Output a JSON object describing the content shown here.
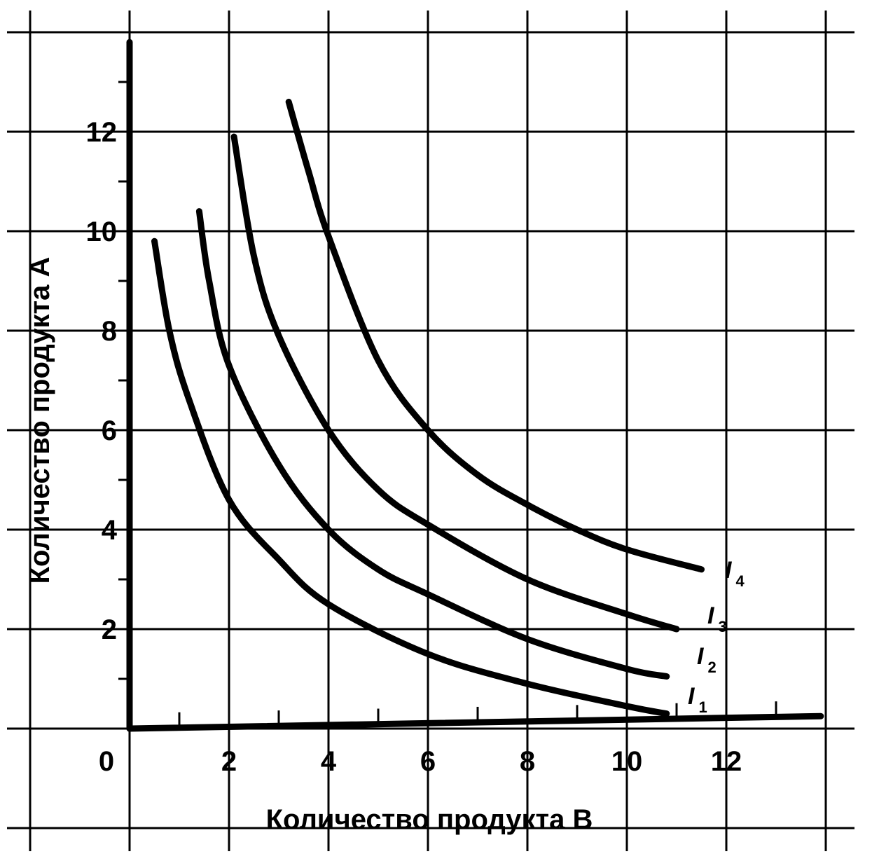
{
  "chart_data": {
    "type": "line",
    "title": "",
    "xlabel": "Количество продукта В",
    "ylabel": "Количество продукта А",
    "xlim": [
      0,
      14
    ],
    "ylim": [
      0,
      14
    ],
    "grid": true,
    "x_ticks": [
      0,
      2,
      4,
      6,
      8,
      10,
      12
    ],
    "y_ticks": [
      2,
      4,
      6,
      8,
      10,
      12
    ],
    "legend": "none",
    "series": [
      {
        "name": "I",
        "label_sub": "1",
        "points": [
          [
            0.5,
            9.8
          ],
          [
            0.8,
            8.0
          ],
          [
            1.2,
            6.6
          ],
          [
            2.0,
            4.6
          ],
          [
            3.0,
            3.4
          ],
          [
            4.0,
            2.5
          ],
          [
            6.0,
            1.5
          ],
          [
            8.0,
            0.9
          ],
          [
            10.0,
            0.45
          ],
          [
            10.8,
            0.3
          ]
        ]
      },
      {
        "name": "I",
        "label_sub": "2",
        "points": [
          [
            1.4,
            10.4
          ],
          [
            1.6,
            9.0
          ],
          [
            2.0,
            7.3
          ],
          [
            3.0,
            5.3
          ],
          [
            4.0,
            4.0
          ],
          [
            5.0,
            3.2
          ],
          [
            6.0,
            2.7
          ],
          [
            8.0,
            1.8
          ],
          [
            10.0,
            1.2
          ],
          [
            10.8,
            1.05
          ]
        ]
      },
      {
        "name": "I",
        "label_sub": "3",
        "points": [
          [
            2.1,
            11.9
          ],
          [
            2.5,
            9.5
          ],
          [
            3.0,
            7.9
          ],
          [
            4.0,
            6.0
          ],
          [
            5.0,
            4.8
          ],
          [
            6.0,
            4.1
          ],
          [
            8.0,
            3.0
          ],
          [
            10.0,
            2.3
          ],
          [
            11.0,
            2.0
          ]
        ]
      },
      {
        "name": "I",
        "label_sub": "4",
        "points": [
          [
            3.2,
            12.6
          ],
          [
            3.6,
            11.2
          ],
          [
            4.0,
            9.9
          ],
          [
            5.0,
            7.4
          ],
          [
            6.0,
            6.0
          ],
          [
            7.0,
            5.1
          ],
          [
            8.0,
            4.5
          ],
          [
            9.0,
            4.0
          ],
          [
            10.0,
            3.6
          ],
          [
            11.5,
            3.2
          ]
        ]
      }
    ]
  }
}
